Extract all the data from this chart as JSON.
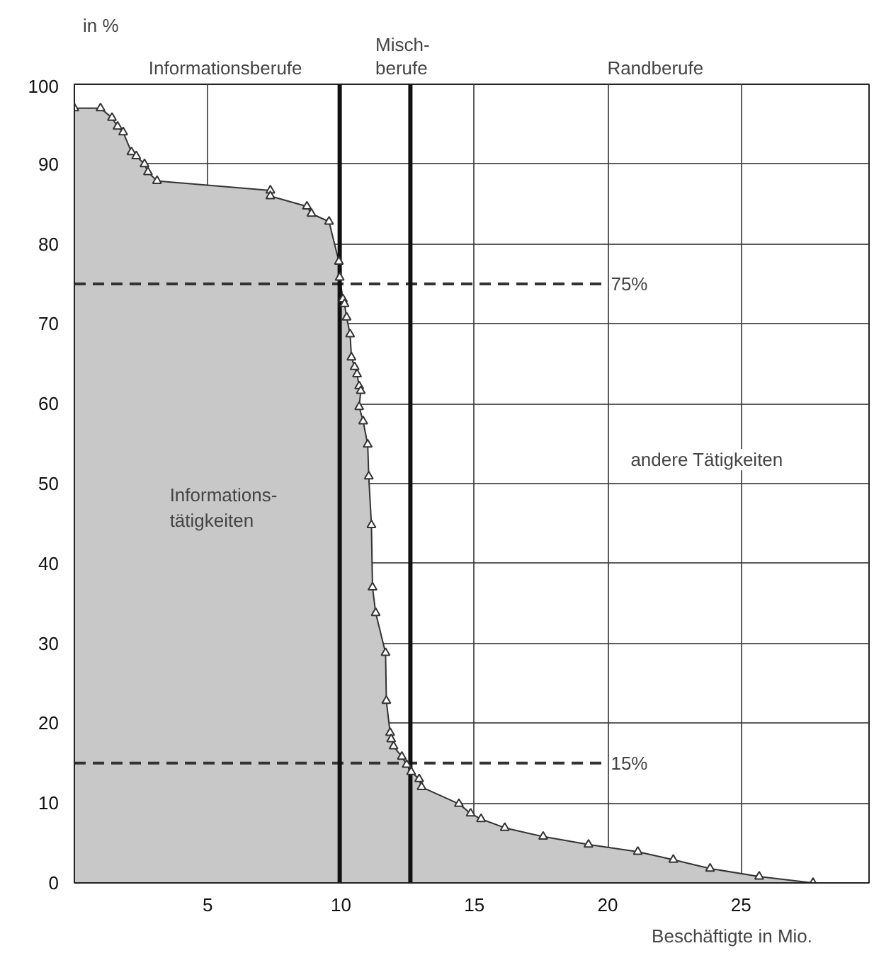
{
  "chart_data": {
    "type": "area",
    "xlabel": "Beschäftigte in Mio.",
    "ylabel": "in %",
    "x": [
      0,
      0.98,
      1.41,
      1.62,
      1.83,
      2.14,
      2.32,
      2.63,
      2.76,
      3.1,
      7.35,
      7.35,
      8.72,
      8.89,
      9.55,
      9.92,
      9.95,
      10.07,
      10.13,
      10.21,
      10.34,
      10.39,
      10.51,
      10.6,
      10.68,
      10.74,
      10.68,
      10.83,
      11.0,
      11.04,
      11.14,
      11.18,
      11.3,
      11.67,
      11.7,
      11.84,
      11.88,
      11.97,
      12.28,
      12.46,
      12.63,
      12.93,
      13.02,
      14.42,
      14.86,
      15.25,
      16.14,
      17.58,
      19.28,
      21.13,
      22.46,
      23.84,
      25.68,
      27.7
    ],
    "series": [
      {
        "color": "#c8c8c8",
        "values": [
          97,
          97,
          95.8,
          94.7,
          94,
          91.5,
          91,
          90,
          89,
          87.9,
          86.7,
          86,
          84.7,
          83.8,
          82.8,
          77.8,
          75.8,
          73.1,
          72.5,
          70.8,
          68.7,
          65.8,
          64.6,
          63.7,
          62.2,
          61.6,
          59.6,
          57.8,
          54.9,
          50.9,
          44.8,
          37,
          33.8,
          28.8,
          22.8,
          18.8,
          18,
          17.1,
          15.8,
          14.8,
          13.9,
          13,
          12,
          9.9,
          8.7,
          8,
          6.9,
          5.8,
          4.8,
          3.9,
          2.9,
          1.8,
          0.8,
          0
        ]
      }
    ],
    "marker": "triangle",
    "xlim": [
      0,
      29.8
    ],
    "ylim": [
      0,
      100
    ],
    "xticks": [
      {
        "value": 0,
        "label": null
      },
      5,
      10,
      15,
      20,
      25
    ],
    "yticks": [
      0,
      10,
      20,
      30,
      40,
      50,
      60,
      70,
      80,
      90,
      100
    ],
    "grid": true,
    "ref_lines": [
      {
        "axis": "y",
        "value": 75,
        "label": "75%",
        "line_style": "dashed",
        "color": "#333333"
      },
      {
        "axis": "y",
        "value": 15,
        "label": "15%",
        "line_style": "dashed",
        "color": "#333333"
      },
      {
        "axis": "x",
        "value": 9.95,
        "color": "#111111"
      },
      {
        "axis": "x",
        "value": 12.6,
        "color": "#111111"
      }
    ],
    "annotations": [
      "Informationsberufe",
      "Misch-\nberufe",
      "Randberufe",
      "Informations-\ntätigkeiten",
      "andere Tätigkeiten"
    ]
  }
}
